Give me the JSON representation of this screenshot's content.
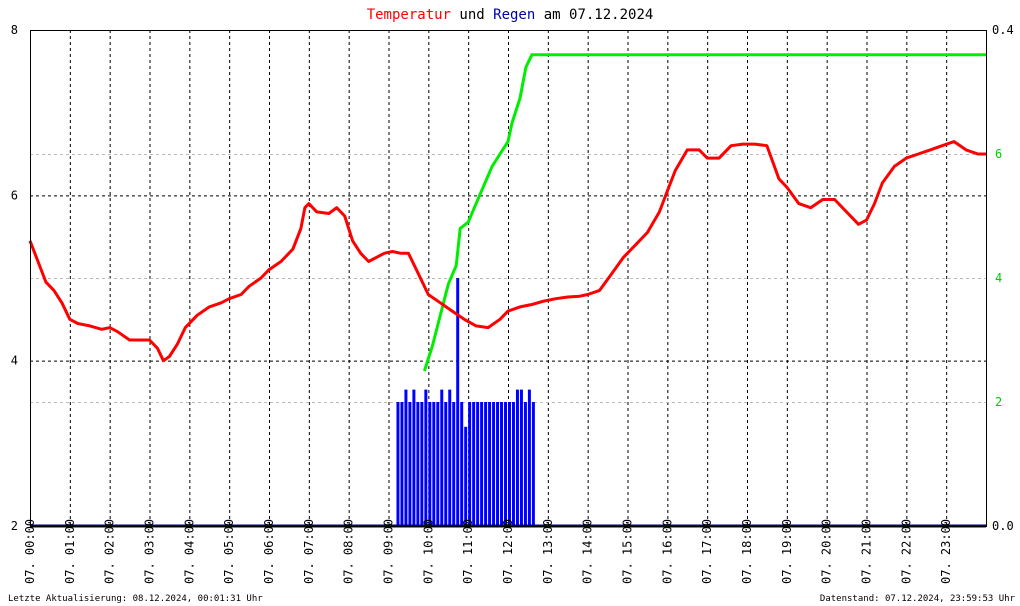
{
  "title": {
    "part1": "Temperatur",
    "part2": " und ",
    "part3": "Regen",
    "part4": " am 07.12.2024",
    "color1": "#ff0000",
    "color3": "#0000aa"
  },
  "footer": {
    "left": "Letzte Aktualisierung: 08.12.2024, 00:01:31 Uhr",
    "right": "Datenstand: 07.12.2024, 23:59:53 Uhr"
  },
  "chart_data": {
    "type": "line",
    "x_ticks": [
      "07. 00:00",
      "07. 01:00",
      "07. 02:00",
      "07. 03:00",
      "07. 04:00",
      "07. 05:00",
      "07. 06:00",
      "07. 07:00",
      "07. 08:00",
      "07. 09:00",
      "07. 10:00",
      "07. 11:00",
      "07. 12:00",
      "07. 13:00",
      "07. 14:00",
      "07. 15:00",
      "07. 16:00",
      "07. 17:00",
      "07. 18:00",
      "07. 19:00",
      "07. 20:00",
      "07. 21:00",
      "07. 22:00",
      "07. 23:00"
    ],
    "x_range_hours": [
      0,
      24
    ],
    "y_left": {
      "ticks": [
        "2",
        "4",
        "6",
        "8"
      ],
      "range": [
        2,
        8
      ]
    },
    "y_right_rain": {
      "ticks": [
        "0.0",
        "0.4"
      ],
      "range": [
        0,
        0.4
      ]
    },
    "y_right_sum": {
      "ticks": [
        "2",
        "4",
        "6"
      ],
      "range": [
        0,
        8
      ]
    },
    "grid": true,
    "colors": {
      "temperature": "#ff0000",
      "rain": "#0000ff",
      "rain_sum": "#00ee00",
      "axis_right_sum": "#00cc00",
      "baseline": "#000080"
    },
    "series": [
      {
        "key": "temperature",
        "x": [
          0,
          0.2,
          0.4,
          0.6,
          0.8,
          1.0,
          1.2,
          1.5,
          1.8,
          2.0,
          2.2,
          2.5,
          2.7,
          3.0,
          3.2,
          3.35,
          3.5,
          3.7,
          3.9,
          4.2,
          4.5,
          4.8,
          5.0,
          5.3,
          5.5,
          5.8,
          6.0,
          6.3,
          6.6,
          6.8,
          6.9,
          7.0,
          7.2,
          7.5,
          7.7,
          7.9,
          8.1,
          8.3,
          8.5,
          8.7,
          8.9,
          9.1,
          9.3,
          9.5,
          9.7,
          10.0,
          10.3,
          10.6,
          10.9,
          11.2,
          11.5,
          11.8,
          12.0,
          12.3,
          12.6,
          12.9,
          13.2,
          13.5,
          13.8,
          14.0,
          14.3,
          14.6,
          14.9,
          15.2,
          15.5,
          15.8,
          16.0,
          16.2,
          16.5,
          16.8,
          17.0,
          17.3,
          17.6,
          17.9,
          18.2,
          18.5,
          18.8,
          19.0,
          19.3,
          19.6,
          19.9,
          20.2,
          20.5,
          20.8,
          21.0,
          21.2,
          21.4,
          21.7,
          22.0,
          22.3,
          22.6,
          22.9,
          23.2,
          23.5,
          23.8,
          24.0
        ],
        "values": [
          5.45,
          5.2,
          4.95,
          4.85,
          4.7,
          4.5,
          4.45,
          4.42,
          4.38,
          4.4,
          4.35,
          4.25,
          4.25,
          4.25,
          4.15,
          4.0,
          4.05,
          4.2,
          4.4,
          4.55,
          4.65,
          4.7,
          4.75,
          4.8,
          4.9,
          5.0,
          5.1,
          5.2,
          5.35,
          5.6,
          5.85,
          5.9,
          5.8,
          5.78,
          5.85,
          5.75,
          5.45,
          5.3,
          5.2,
          5.25,
          5.3,
          5.32,
          5.3,
          5.3,
          5.1,
          4.8,
          4.7,
          4.6,
          4.5,
          4.42,
          4.4,
          4.5,
          4.6,
          4.65,
          4.68,
          4.72,
          4.75,
          4.77,
          4.78,
          4.8,
          4.85,
          5.05,
          5.25,
          5.4,
          5.55,
          5.8,
          6.05,
          6.3,
          6.55,
          6.55,
          6.45,
          6.45,
          6.6,
          6.62,
          6.62,
          6.6,
          6.2,
          6.1,
          5.9,
          5.85,
          5.95,
          5.95,
          5.8,
          5.65,
          5.7,
          5.9,
          6.15,
          6.35,
          6.45,
          6.5,
          6.55,
          6.6,
          6.65,
          6.55,
          6.5,
          6.5
        ]
      },
      {
        "key": "rain_sum",
        "x": [
          9.9,
          10.1,
          10.3,
          10.5,
          10.7,
          10.8,
          11.0,
          11.2,
          11.4,
          11.6,
          11.8,
          12.0,
          12.1,
          12.3,
          12.45,
          12.6,
          24.0
        ],
        "values": [
          2.5,
          2.9,
          3.4,
          3.9,
          4.2,
          4.8,
          4.9,
          5.2,
          5.5,
          5.8,
          6.0,
          6.2,
          6.5,
          6.9,
          7.4,
          7.6,
          7.6
        ]
      },
      {
        "key": "rain",
        "x": [
          9.2,
          9.3,
          9.4,
          9.5,
          9.6,
          9.7,
          9.8,
          9.9,
          10.0,
          10.1,
          10.2,
          10.3,
          10.4,
          10.5,
          10.6,
          10.7,
          10.8,
          10.9,
          11.0,
          11.1,
          11.2,
          11.3,
          11.4,
          11.5,
          11.6,
          11.7,
          11.8,
          11.9,
          12.0,
          12.1,
          12.2,
          12.3,
          12.4,
          12.5,
          12.6
        ],
        "values": [
          0.1,
          0.1,
          0.11,
          0.1,
          0.11,
          0.1,
          0.1,
          0.11,
          0.1,
          0.1,
          0.1,
          0.11,
          0.1,
          0.11,
          0.1,
          0.2,
          0.1,
          0.08,
          0.1,
          0.1,
          0.1,
          0.1,
          0.1,
          0.1,
          0.1,
          0.1,
          0.1,
          0.1,
          0.1,
          0.1,
          0.11,
          0.11,
          0.1,
          0.11,
          0.1
        ]
      }
    ]
  }
}
